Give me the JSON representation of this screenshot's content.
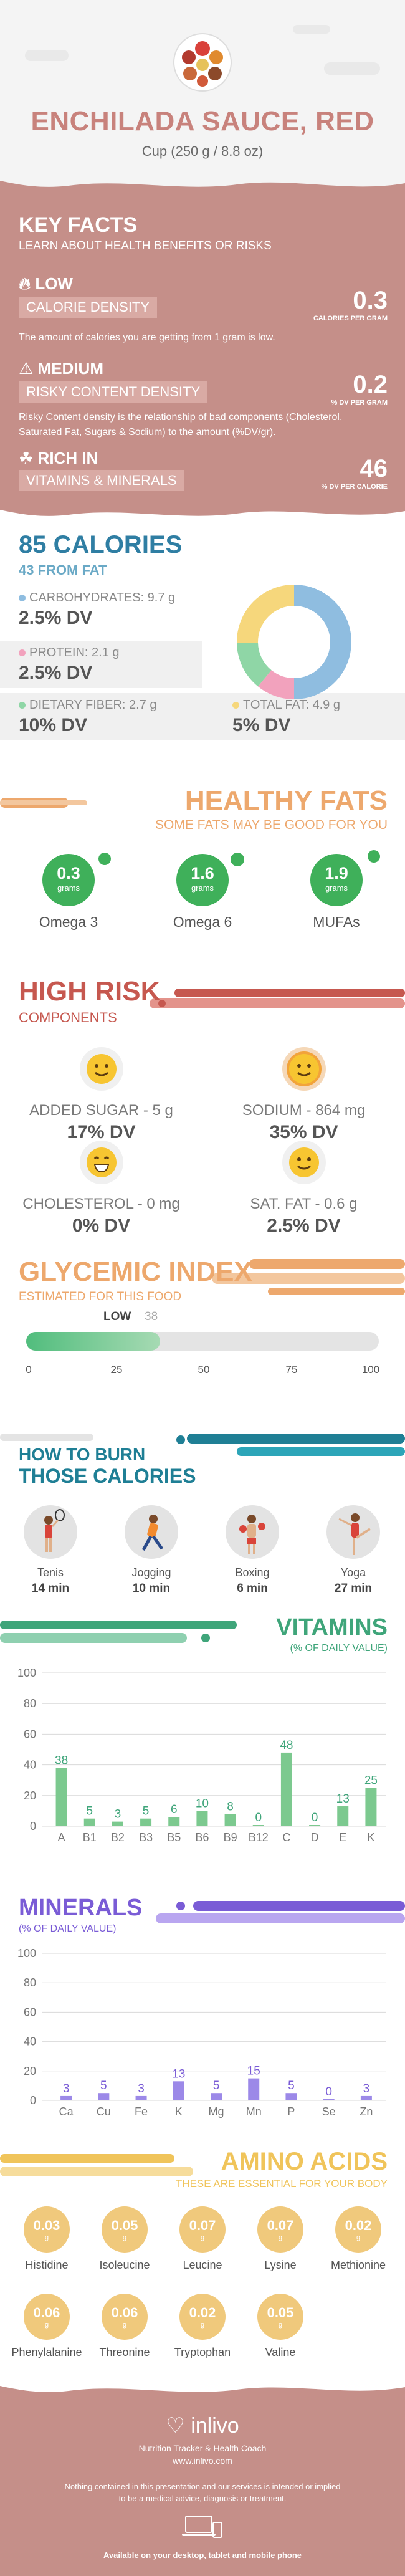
{
  "header": {
    "title": "ENCHILADA SAUCE, RED",
    "subtitle": "Cup (250 g / 8.8 oz)"
  },
  "key_facts": {
    "title": "KEY FACTS",
    "subtitle": "LEARN ABOUT HEALTH BENEFITS OR RISKS",
    "items": [
      {
        "level": "LOW",
        "label": "CALORIE DENSITY",
        "desc": "The amount of calories you are getting from 1 gram is low.",
        "value": "0.3",
        "unit": "CALORIES PER GRAM"
      },
      {
        "level": "MEDIUM",
        "label": "RISKY CONTENT DENSITY",
        "desc": "Risky Content density is the relationship of bad components (Cholesterol, Saturated Fat, Sugars & Sodium) to the amount (%DV/gr).",
        "value": "0.2",
        "unit": "% DV PER GRAM"
      },
      {
        "level": "RICH  IN",
        "label": "VITAMINS & MINERALS",
        "desc": "",
        "value": "46",
        "unit": "% DV PER CALORIE"
      }
    ]
  },
  "calories": {
    "title": "85 CALORIES",
    "from_fat": "43 FROM FAT",
    "macros": [
      {
        "label": "CARBOHYDRATES: 9.7 g",
        "dv": "2.5% DV",
        "color": "#8fbde0"
      },
      {
        "label": "PROTEIN: 2.1 g",
        "dv": "2.5% DV",
        "color": "#f2a2bd"
      },
      {
        "label": "DIETARY FIBER: 2.7 g",
        "dv": "10% DV",
        "color": "#8fd6a6"
      },
      {
        "label": "TOTAL FAT: 4.9 g",
        "dv": "5% DV",
        "color": "#f6d77c"
      }
    ]
  },
  "chart_data": [
    {
      "type": "pie",
      "title": "",
      "categories": [
        "Carbohydrates",
        "Protein",
        "Dietary Fiber",
        "Total Fat"
      ],
      "values": [
        9.7,
        2.1,
        2.7,
        4.9
      ],
      "colors": [
        "#8fbde0",
        "#f2a2bd",
        "#8fd6a6",
        "#f6d77c"
      ]
    },
    {
      "type": "bar",
      "title": "VITAMINS",
      "categories": [
        "A",
        "B1",
        "B2",
        "B3",
        "B5",
        "B6",
        "B9",
        "B12",
        "C",
        "D",
        "E",
        "K"
      ],
      "values": [
        38,
        5,
        3,
        5,
        6,
        10,
        8,
        0,
        48,
        0,
        13,
        25
      ],
      "ylim": [
        0,
        100
      ],
      "yticks": [
        0,
        20,
        40,
        60,
        80,
        100
      ],
      "grid": true
    },
    {
      "type": "bar",
      "title": "MINERALS",
      "categories": [
        "Ca",
        "Cu",
        "Fe",
        "K",
        "Mg",
        "Mn",
        "P",
        "Se",
        "Zn"
      ],
      "values": [
        3,
        5,
        3,
        13,
        5,
        15,
        5,
        0,
        3
      ],
      "ylim": [
        0,
        100
      ],
      "yticks": [
        0,
        20,
        40,
        60,
        80,
        100
      ],
      "grid": true
    }
  ],
  "fats": {
    "title": "HEALTHY FATS",
    "subtitle": "SOME FATS MAY BE GOOD FOR YOU",
    "unit": "grams",
    "items": [
      {
        "name": "Omega 3",
        "value": "0.3"
      },
      {
        "name": "Omega 6",
        "value": "1.6"
      },
      {
        "name": "MUFAs",
        "value": "1.9"
      }
    ]
  },
  "risk": {
    "title": "HIGH RISK",
    "subtitle": "COMPONENTS",
    "items": [
      {
        "name": "ADDED SUGAR - 5 g",
        "dv": "17% DV"
      },
      {
        "name": "SODIUM - 864 mg",
        "dv": "35% DV"
      },
      {
        "name": "CHOLESTEROL - 0 mg",
        "dv": "0% DV"
      },
      {
        "name": "SAT. FAT - 0.6 g",
        "dv": "2.5% DV"
      }
    ]
  },
  "glycemic": {
    "title": "GLYCEMIC INDEX",
    "subtitle": "ESTIMATED FOR THIS FOOD",
    "level": "LOW",
    "value": "38",
    "fraction": 0.38,
    "ticks": [
      "0",
      "25",
      "50",
      "75",
      "100"
    ]
  },
  "burn": {
    "title_line1": "HOW TO BURN",
    "title_line2": "THOSE CALORIES",
    "activities": [
      {
        "name": "Tenis",
        "time": "14 min"
      },
      {
        "name": "Jogging",
        "time": "10 min"
      },
      {
        "name": "Boxing",
        "time": "6 min"
      },
      {
        "name": "Yoga",
        "time": "27 min"
      }
    ]
  },
  "vitamins": {
    "title": "VITAMINS",
    "subtitle": "(% OF DAILY VALUE)"
  },
  "minerals": {
    "title": "MINERALS",
    "subtitle": "(% OF DAILY VALUE)"
  },
  "amino": {
    "title": "AMINO ACIDS",
    "subtitle": "THESE ARE ESSENTIAL FOR YOUR BODY",
    "unit": "g",
    "items": [
      {
        "name": "Histidine",
        "value": "0.03"
      },
      {
        "name": "Isoleucine",
        "value": "0.05"
      },
      {
        "name": "Leucine",
        "value": "0.07"
      },
      {
        "name": "Lysine",
        "value": "0.07"
      },
      {
        "name": "Methionine",
        "value": "0.02"
      },
      {
        "name": "Phenylalanine",
        "value": "0.06"
      },
      {
        "name": "Threonine",
        "value": "0.06"
      },
      {
        "name": "Tryptophan",
        "value": "0.02"
      },
      {
        "name": "Valine",
        "value": "0.05"
      }
    ]
  },
  "footer": {
    "brand": "inlivo",
    "tagline": "Nutrition Tracker & Health Coach",
    "url": "www.inlivo.com",
    "disclaimer_1": "Nothing contained in this presentation and our services is intended or implied",
    "disclaimer_2": "to be a medical advice, diagnosis or treatment.",
    "available": "Available on your desktop, tablet and mobile phone"
  },
  "colors": {
    "rose": "#c58f89",
    "rose_title": "#c8827c",
    "blue": "#2f7ea3",
    "orange": "#eda86d",
    "red": "#c6584f",
    "green": "#3fb05a",
    "teal": "#1f7f95",
    "purple": "#7a5cd6",
    "gold": "#f0c45a"
  }
}
